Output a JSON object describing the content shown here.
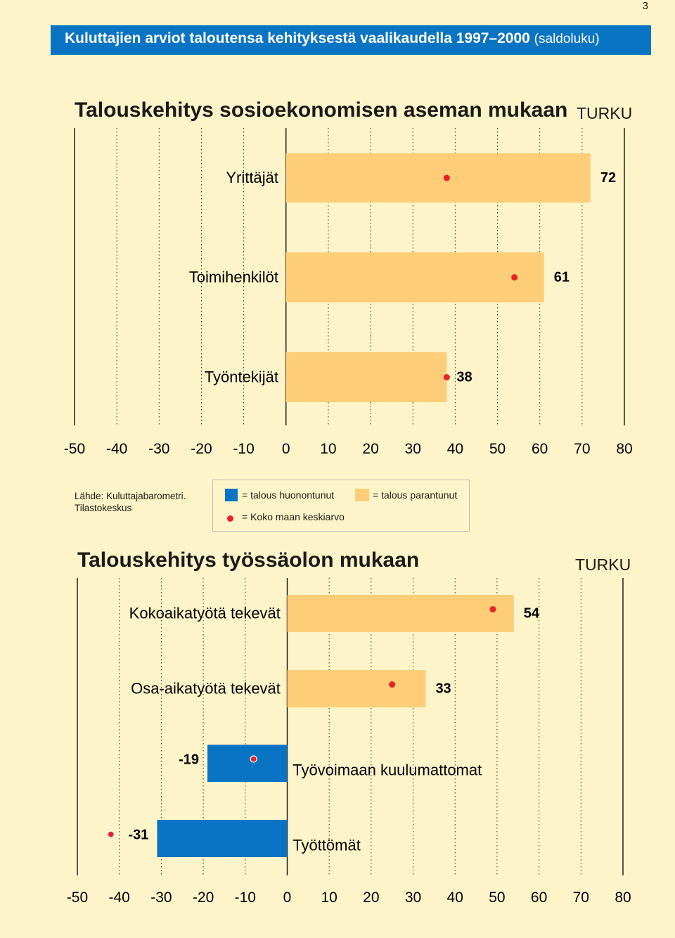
{
  "page_number": "3",
  "banner": {
    "title": "Kuluttajien arviot taloutensa kehityksestä vaalikaudella 1997–2000",
    "subtitle": "(saldoluku)"
  },
  "source": {
    "line1": "Lähde: Kuluttajabarometri.",
    "line2": "Tilastokeskus"
  },
  "legend": {
    "worse": "= talous huonontunut",
    "better": "= talous parantunut",
    "average": "= Koko maan keskiarvo"
  },
  "colors": {
    "worse": "#0a74c4",
    "better": "#fecd78",
    "average_dot": "#e8202a",
    "background": "#fdf5c9",
    "banner": "#0a74c4"
  },
  "chart_data": [
    {
      "type": "bar",
      "orientation": "horizontal",
      "title": "Talouskehitys sosioekonomisen aseman mukaan",
      "region": "TURKU",
      "xlim": [
        -50,
        80
      ],
      "x_ticks": [
        -50,
        -40,
        -30,
        -20,
        -10,
        0,
        10,
        20,
        30,
        40,
        50,
        60,
        70,
        80
      ],
      "grid": "vertical dotted",
      "categories": [
        "Yrittäjät",
        "Toimihenkilöt",
        "Työntekijät"
      ],
      "values": [
        72,
        61,
        38
      ],
      "value_labels": [
        "72",
        "61",
        "38"
      ],
      "national_average": [
        38,
        54,
        38
      ]
    },
    {
      "type": "bar",
      "orientation": "horizontal",
      "title": "Talouskehitys työssäolon mukaan",
      "region": "TURKU",
      "xlim": [
        -50,
        80
      ],
      "x_ticks": [
        -50,
        -40,
        -30,
        -20,
        -10,
        0,
        10,
        20,
        30,
        40,
        50,
        60,
        70,
        80
      ],
      "grid": "vertical dotted",
      "categories": [
        "Kokoaikatyötä tekevät",
        "Osa-aikatyötä tekevät",
        "Työvoimaan kuulumattomat",
        "Työttömät"
      ],
      "values": [
        54,
        33,
        -19,
        -31
      ],
      "value_labels": [
        "54",
        "33",
        "-19",
        "-31"
      ],
      "national_average": [
        49,
        25,
        -8,
        -42
      ]
    }
  ]
}
